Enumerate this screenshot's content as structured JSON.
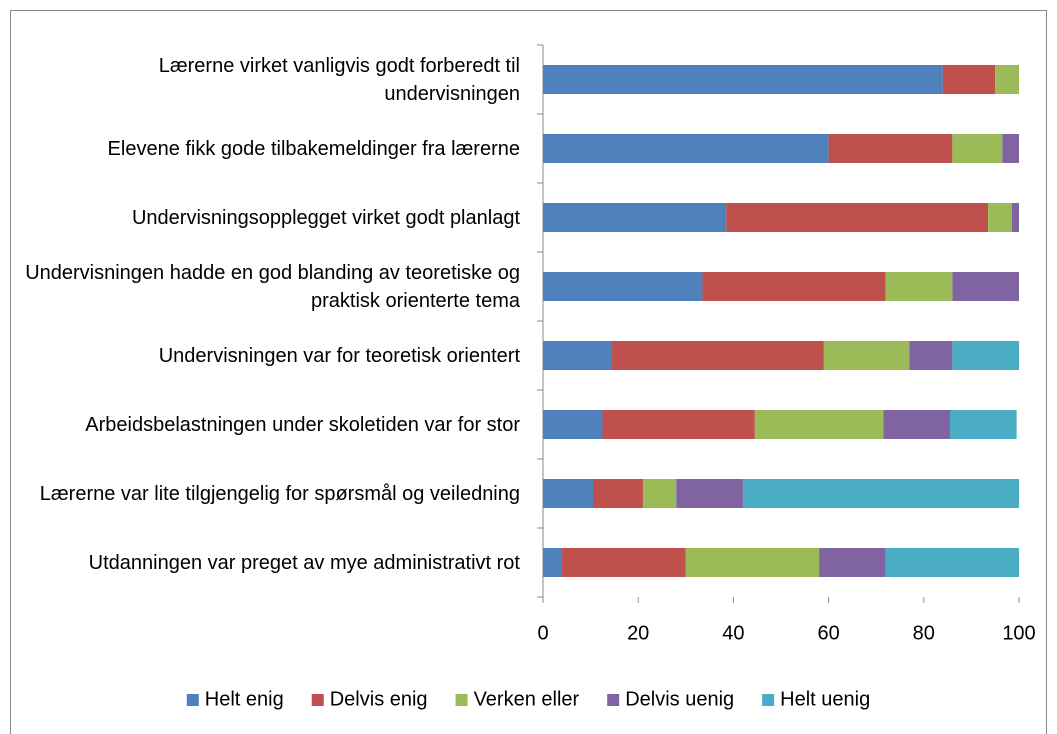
{
  "chart_data": {
    "type": "stacked_bar_horizontal",
    "categories": [
      "Lærerne virket vanligvis godt forberedt til undervisningen",
      "Elevene fikk gode tilbakemeldinger fra lærerne",
      "Undervisningsopplegget virket godt planlagt",
      "Undervisningen hadde en god blanding av teoretiske og praktisk orienterte tema",
      "Undervisningen var for teoretisk orientert",
      "Arbeidsbelastningen under skoletiden var for stor",
      "Lærerne var lite tilgjengelig for spørsmål og veiledning",
      "Utdanningen var preget av mye administrativt rot"
    ],
    "series": [
      {
        "name": "Helt enig",
        "color": "#4f81bd",
        "values": [
          84,
          60,
          38.5,
          33.5,
          14.5,
          12.5,
          10.5,
          4
        ]
      },
      {
        "name": "Delvis enig",
        "color": "#c0504d",
        "values": [
          11,
          26,
          55,
          38.5,
          44.5,
          32,
          10.5,
          26
        ]
      },
      {
        "name": "Verken eller",
        "color": "#9bbb59",
        "values": [
          5,
          10.5,
          5,
          14,
          18,
          27,
          7,
          28
        ]
      },
      {
        "name": "Delvis uenig",
        "color": "#8064a2",
        "values": [
          0,
          3.5,
          1.5,
          14,
          9,
          14,
          14,
          14
        ]
      },
      {
        "name": "Helt uenig",
        "color": "#4bacc6",
        "values": [
          0,
          0,
          0,
          0,
          14,
          14,
          58,
          28
        ]
      }
    ],
    "xlim": [
      0,
      100
    ],
    "xticks": [
      0,
      20,
      40,
      60,
      80,
      100
    ],
    "grid": false,
    "legend": "bottom"
  }
}
